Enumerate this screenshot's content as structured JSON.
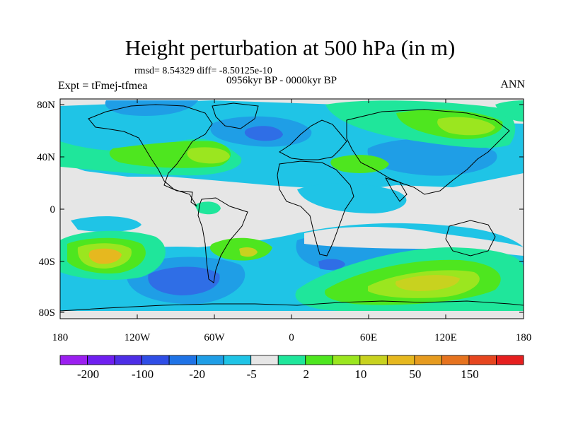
{
  "header": {
    "title": "Height perturbation at 500 hPa (in m)",
    "stats": "rmsd= 8.54329 diff= -8.50125e-10",
    "period": "0956kyr BP - 0000kyr BP",
    "experiment": "Expt = tFmej-tfmea",
    "season": "ANN"
  },
  "axes": {
    "lat_ticks": [
      "80N",
      "40N",
      "0",
      "40S",
      "80S"
    ],
    "lon_ticks": [
      "180",
      "120W",
      "60W",
      "0",
      "60E",
      "120E",
      "180"
    ]
  },
  "colorbar": {
    "colors": [
      "#9b1ff0",
      "#6f1ff0",
      "#4d2ee6",
      "#2f4ee6",
      "#1f73e6",
      "#1f9ee6",
      "#1fc4e6",
      "#e6e6e6",
      "#1fe69b",
      "#4ee61f",
      "#9be61f",
      "#c8d21f",
      "#e6b81f",
      "#e69b1f",
      "#e6731f",
      "#e6461f",
      "#e61f1f"
    ],
    "labels": [
      "-200",
      "-100",
      "-20",
      "-5",
      "2",
      "10",
      "50",
      "150"
    ]
  },
  "map_colors": {
    "neutral": "#e6e6e6",
    "neg_weak": "#1fc4e6",
    "neg_mid": "#1f9ee6",
    "neg_strong": "#2f6ee6",
    "pos_weak": "#1fe69b",
    "pos_mid": "#4ee61f",
    "pos_strong": "#9be61f",
    "pos_high": "#c8d21f",
    "pos_peak": "#e6b81f"
  }
}
